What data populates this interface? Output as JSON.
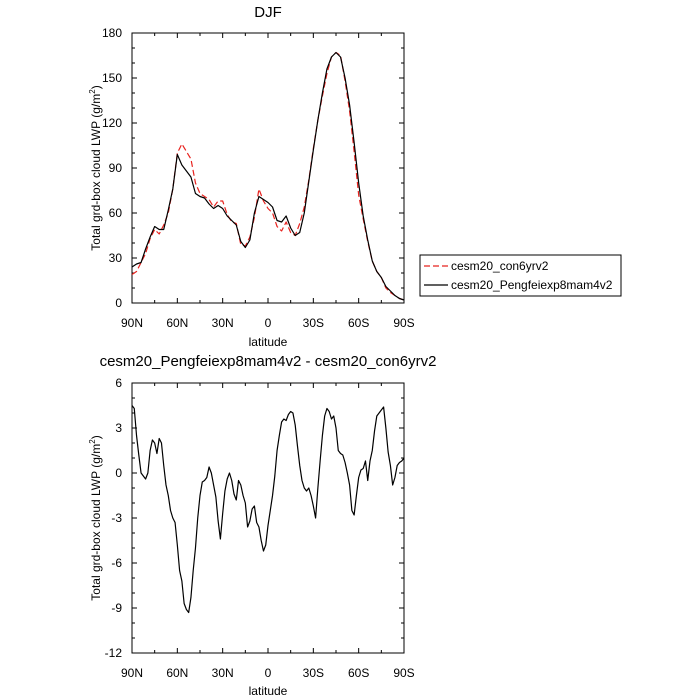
{
  "chart_data": [
    {
      "type": "line",
      "title": "DJF",
      "xlabel": "latitude",
      "ylabel": "Total grd-box cloud LWP (g/m",
      "ylabel_sup": "2",
      "ylabel_end": ")",
      "xticks": [
        "90N",
        "60N",
        "30N",
        "0",
        "30S",
        "60S",
        "90S"
      ],
      "ylim": [
        0,
        180
      ],
      "yticks": [
        "0",
        "30",
        "60",
        "90",
        "120",
        "150",
        "180"
      ],
      "legend": "right",
      "series": [
        {
          "name": "cesm20_con6yrv2",
          "color": "#e8231f",
          "dash": "dashed",
          "x": [
            90,
            87,
            84,
            81,
            78,
            75,
            72,
            69,
            66,
            63,
            60,
            57,
            54,
            51,
            48,
            45,
            42,
            39,
            36,
            33,
            30,
            27,
            24,
            21,
            18,
            15,
            12,
            9,
            6,
            3,
            0,
            -3,
            -6,
            -9,
            -12,
            -15,
            -18,
            -21,
            -24,
            -27,
            -30,
            -33,
            -36,
            -39,
            -42,
            -45,
            -48,
            -51,
            -54,
            -57,
            -60,
            -63,
            -66,
            -69,
            -72,
            -75,
            -78,
            -81,
            -84,
            -87,
            -90
          ],
          "values": [
            19,
            21,
            27,
            33,
            43,
            49,
            46,
            52,
            60,
            76,
            100,
            106,
            101,
            96,
            80,
            73,
            71,
            69,
            64,
            68,
            68,
            59,
            54,
            53,
            39,
            38,
            44,
            57,
            76,
            68,
            63,
            60,
            51,
            48,
            54,
            47,
            45,
            53,
            64,
            82,
            103,
            122,
            138,
            153,
            164,
            167,
            165,
            148,
            128,
            101,
            72,
            56,
            41,
            28,
            21,
            17,
            10,
            7,
            5,
            3,
            2
          ]
        },
        {
          "name": "cesm20_Pengfeiexp8mam4v2",
          "color": "#000000",
          "dash": "solid",
          "x": [
            90,
            87,
            84,
            81,
            78,
            75,
            72,
            69,
            66,
            63,
            60,
            57,
            54,
            51,
            48,
            45,
            42,
            39,
            36,
            33,
            30,
            27,
            24,
            21,
            18,
            15,
            12,
            9,
            6,
            3,
            0,
            -3,
            -6,
            -9,
            -12,
            -15,
            -18,
            -21,
            -24,
            -27,
            -30,
            -33,
            -36,
            -39,
            -42,
            -45,
            -48,
            -51,
            -54,
            -57,
            -60,
            -63,
            -66,
            -69,
            -72,
            -75,
            -78,
            -81,
            -84,
            -87,
            -90
          ],
          "values": [
            24,
            26,
            27,
            36,
            44,
            51,
            49,
            49,
            62,
            76,
            99,
            92,
            88,
            84,
            73,
            71,
            70,
            66,
            63,
            65,
            63,
            58,
            55,
            52,
            41,
            37,
            42,
            60,
            71,
            69,
            67,
            64,
            55,
            54,
            58,
            50,
            45,
            47,
            60,
            81,
            102,
            122,
            140,
            156,
            164,
            167,
            164,
            150,
            132,
            107,
            80,
            58,
            42,
            28,
            21,
            17,
            11,
            8,
            5,
            3,
            2
          ]
        }
      ]
    },
    {
      "type": "line",
      "title": "cesm20_Pengfeiexp8mam4v2 - cesm20_con6yrv2",
      "xlabel": "latitude",
      "ylabel": "Total grd-box cloud LWP (g/m",
      "ylabel_sup": "2",
      "ylabel_end": ")",
      "xticks": [
        "90N",
        "60N",
        "30N",
        "0",
        "30S",
        "60S",
        "90S"
      ],
      "ylim": [
        -12,
        6
      ],
      "yticks": [
        "-12",
        "-9",
        "-6",
        "-3",
        "0",
        "3",
        "6"
      ],
      "series": [
        {
          "color": "#000000",
          "x": [
            90,
            88.5,
            87,
            85.5,
            84,
            82.5,
            81,
            79.5,
            78,
            76.5,
            75,
            73.5,
            72,
            70.5,
            69,
            67.5,
            66,
            64.5,
            63,
            61.5,
            60,
            58.5,
            57,
            55.5,
            54,
            52.5,
            51,
            49.5,
            48,
            46.5,
            45,
            43.5,
            42,
            40.5,
            39,
            37.5,
            36,
            34.5,
            33,
            31.5,
            30,
            28.5,
            27,
            25.5,
            24,
            22.5,
            21,
            19.5,
            18,
            16.5,
            15,
            13.5,
            12,
            10.5,
            9,
            7.5,
            6,
            4.5,
            3,
            1.5,
            0,
            -1.5,
            -3,
            -4.5,
            -6,
            -7.5,
            -9,
            -10.5,
            -12,
            -13.5,
            -15,
            -16.5,
            -18,
            -19.5,
            -21,
            -22.5,
            -24,
            -25.5,
            -27,
            -28.5,
            -30,
            -31.5,
            -33,
            -34.5,
            -36,
            -37.5,
            -39,
            -40.5,
            -42,
            -43.5,
            -45,
            -46.5,
            -48,
            -49.5,
            -51,
            -52.5,
            -54,
            -55.5,
            -57,
            -58.5,
            -60,
            -61.5,
            -63,
            -64.5,
            -66,
            -67.5,
            -69,
            -70.5,
            -72,
            -73.5,
            -75,
            -76.5,
            -78,
            -79.5,
            -81,
            -82.5,
            -84,
            -85.5,
            -87,
            -88.5,
            -90
          ],
          "values": [
            4.5,
            4.3,
            2.5,
            1.2,
            0,
            -0.2,
            -0.4,
            0,
            1.5,
            2.2,
            2.0,
            1.3,
            2.3,
            2.0,
            0.5,
            -0.8,
            -1.5,
            -2.5,
            -3.0,
            -3.3,
            -4.8,
            -6.5,
            -7.2,
            -8.7,
            -9.1,
            -9.3,
            -8.3,
            -6.5,
            -5.0,
            -3.0,
            -1.5,
            -0.6,
            -0.5,
            -0.3,
            0.4,
            0,
            -0.8,
            -1.6,
            -3.2,
            -4.4,
            -2.7,
            -1.2,
            -0.4,
            0,
            -0.5,
            -1.4,
            -1.8,
            -0.5,
            -0.8,
            -1.5,
            -2.0,
            -3.6,
            -3.2,
            -2.4,
            -2.2,
            -3.3,
            -3.6,
            -4.5,
            -5.2,
            -4.8,
            -3.5,
            -2.5,
            -1.5,
            -0.2,
            1.5,
            2.5,
            3.4,
            3.6,
            3.5,
            3.9,
            4.1,
            4.0,
            3.2,
            1.8,
            0.5,
            -0.5,
            -1.0,
            -1.2,
            -1.0,
            -1.5,
            -2.2,
            -3.0,
            -1.0,
            0.8,
            2.5,
            3.8,
            4.3,
            4.1,
            3.6,
            3.8,
            3.0,
            1.5,
            1.3,
            1.2,
            0.7,
            0,
            -0.8,
            -2.5,
            -2.8,
            -1.5,
            -0.3,
            0.2,
            0.3,
            0.8,
            -0.5,
            0.8,
            1.5,
            2.8,
            3.8,
            4.0,
            4.2,
            4.4,
            3.0,
            1.4,
            0.5,
            -0.8,
            -0.3,
            0.5,
            0.7,
            0.8,
            1.0
          ]
        }
      ]
    }
  ]
}
